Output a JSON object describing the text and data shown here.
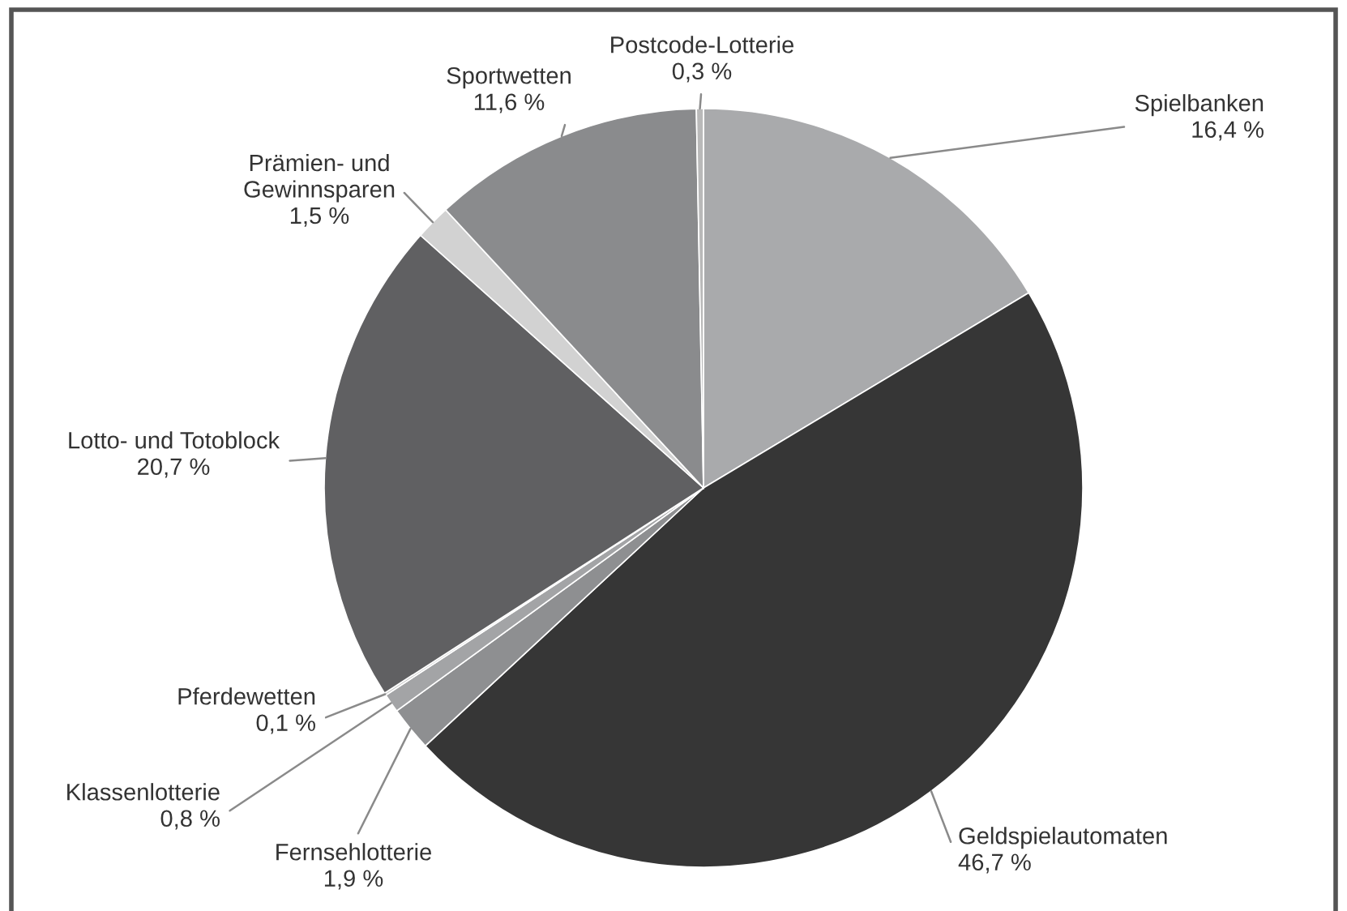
{
  "chart_data": {
    "type": "pie",
    "categories": [
      "Spielbanken",
      "Geldspielautomaten",
      "Fernsehlotterie",
      "Klassenlotterie",
      "Pferdewetten",
      "Lotto- und Totoblock",
      "Prämien- und\nGewinnsparen",
      "Sportwetten",
      "Postcode-Lotterie"
    ],
    "values": [
      16.4,
      46.7,
      1.9,
      0.8,
      0.1,
      20.7,
      1.5,
      11.6,
      0.3
    ],
    "colors": [
      "#a9aaac",
      "#363636",
      "#8e8f91",
      "#a3a4a6",
      "#c8c8c8",
      "#606062",
      "#d2d2d2",
      "#8a8b8d",
      "#b9b9b9"
    ],
    "value_labels": [
      "16,4 %",
      "46,7 %",
      "1,9 %",
      "0,8 %",
      "0,1 %",
      "20,7 %",
      "1,5 %",
      "11,6 %",
      "0,3 %"
    ]
  }
}
